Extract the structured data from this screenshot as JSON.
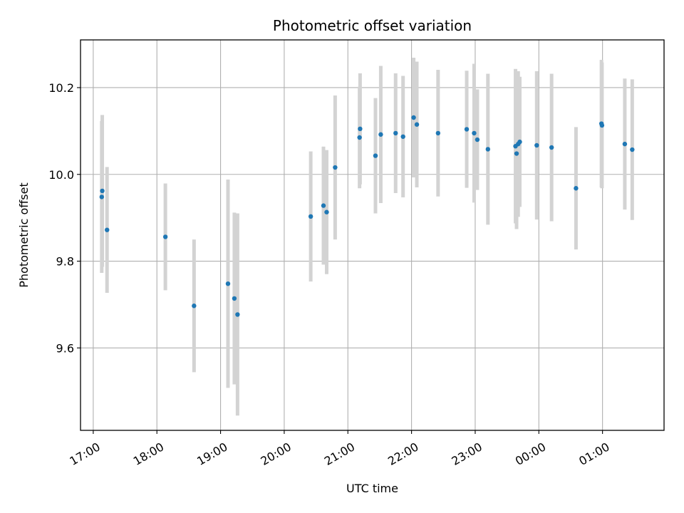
{
  "chart_data": {
    "type": "scatter",
    "title": "Photometric offset variation",
    "xlabel": "UTC time",
    "ylabel": "Photometric offset",
    "x_axis_type": "time",
    "x_start_date": "2023-01-01",
    "xlim": [
      "2023-01-01T16:48:00",
      "2023-01-02T01:58:00"
    ],
    "ylim": [
      9.41,
      10.31
    ],
    "x_ticks": [
      {
        "time": "2023-01-01T17:00:00",
        "label": "17:00"
      },
      {
        "time": "2023-01-01T18:00:00",
        "label": "18:00"
      },
      {
        "time": "2023-01-01T19:00:00",
        "label": "19:00"
      },
      {
        "time": "2023-01-01T20:00:00",
        "label": "20:00"
      },
      {
        "time": "2023-01-01T21:00:00",
        "label": "21:00"
      },
      {
        "time": "2023-01-01T22:00:00",
        "label": "22:00"
      },
      {
        "time": "2023-01-01T23:00:00",
        "label": "23:00"
      },
      {
        "time": "2023-01-02T00:00:00",
        "label": "00:00"
      },
      {
        "time": "2023-01-02T01:00:00",
        "label": "01:00"
      }
    ],
    "y_ticks": [
      {
        "value": 9.6,
        "label": "9.6"
      },
      {
        "value": 9.8,
        "label": "9.8"
      },
      {
        "value": 10.0,
        "label": "10.0"
      },
      {
        "value": 10.2,
        "label": "10.2"
      }
    ],
    "grid": true,
    "marker_color": "#1f77b4",
    "errorbar_color": "#d3d3d3",
    "points": [
      {
        "time": "2023-01-01T17:08:00",
        "y": 9.948,
        "err": 0.175
      },
      {
        "time": "2023-01-01T17:08:30",
        "y": 9.962,
        "err": 0.175
      },
      {
        "time": "2023-01-01T17:13:00",
        "y": 9.872,
        "err": 0.145
      },
      {
        "time": "2023-01-01T18:08:00",
        "y": 9.856,
        "err": 0.123
      },
      {
        "time": "2023-01-01T18:35:00",
        "y": 9.697,
        "err": 0.153
      },
      {
        "time": "2023-01-01T19:07:00",
        "y": 9.748,
        "err": 0.24
      },
      {
        "time": "2023-01-01T19:13:00",
        "y": 9.714,
        "err": 0.198
      },
      {
        "time": "2023-01-01T19:16:00",
        "y": 9.677,
        "err": 0.233
      },
      {
        "time": "2023-01-01T20:25:00",
        "y": 9.903,
        "err": 0.15
      },
      {
        "time": "2023-01-01T20:37:00",
        "y": 9.928,
        "err": 0.136
      },
      {
        "time": "2023-01-01T20:40:00",
        "y": 9.913,
        "err": 0.143
      },
      {
        "time": "2023-01-01T20:48:00",
        "y": 10.016,
        "err": 0.166
      },
      {
        "time": "2023-01-01T21:11:00",
        "y": 10.085,
        "err": 0.117
      },
      {
        "time": "2023-01-01T21:11:30",
        "y": 10.105,
        "err": 0.128
      },
      {
        "time": "2023-01-01T21:26:00",
        "y": 10.043,
        "err": 0.133
      },
      {
        "time": "2023-01-01T21:31:00",
        "y": 10.092,
        "err": 0.158
      },
      {
        "time": "2023-01-01T21:45:00",
        "y": 10.095,
        "err": 0.138
      },
      {
        "time": "2023-01-01T21:52:00",
        "y": 10.087,
        "err": 0.14
      },
      {
        "time": "2023-01-01T22:02:00",
        "y": 10.131,
        "err": 0.138
      },
      {
        "time": "2023-01-01T22:05:00",
        "y": 10.115,
        "err": 0.145
      },
      {
        "time": "2023-01-01T22:25:00",
        "y": 10.095,
        "err": 0.146
      },
      {
        "time": "2023-01-01T22:52:00",
        "y": 10.104,
        "err": 0.135
      },
      {
        "time": "2023-01-01T22:59:00",
        "y": 10.095,
        "err": 0.16
      },
      {
        "time": "2023-01-01T23:02:00",
        "y": 10.08,
        "err": 0.116
      },
      {
        "time": "2023-01-01T23:12:00",
        "y": 10.058,
        "err": 0.174
      },
      {
        "time": "2023-01-01T23:38:00",
        "y": 10.065,
        "err": 0.178
      },
      {
        "time": "2023-01-01T23:39:00",
        "y": 10.048,
        "err": 0.174
      },
      {
        "time": "2023-01-01T23:40:30",
        "y": 10.07,
        "err": 0.168
      },
      {
        "time": "2023-01-01T23:42:00",
        "y": 10.075,
        "err": 0.15
      },
      {
        "time": "2023-01-01T23:58:00",
        "y": 10.067,
        "err": 0.171
      },
      {
        "time": "2023-01-02T00:12:00",
        "y": 10.062,
        "err": 0.17
      },
      {
        "time": "2023-01-02T00:35:00",
        "y": 9.968,
        "err": 0.141
      },
      {
        "time": "2023-01-02T00:59:00",
        "y": 10.117,
        "err": 0.147
      },
      {
        "time": "2023-01-02T00:59:30",
        "y": 10.113,
        "err": 0.145
      },
      {
        "time": "2023-01-02T01:21:00",
        "y": 10.07,
        "err": 0.151
      },
      {
        "time": "2023-01-02T01:28:00",
        "y": 10.057,
        "err": 0.162
      }
    ]
  }
}
